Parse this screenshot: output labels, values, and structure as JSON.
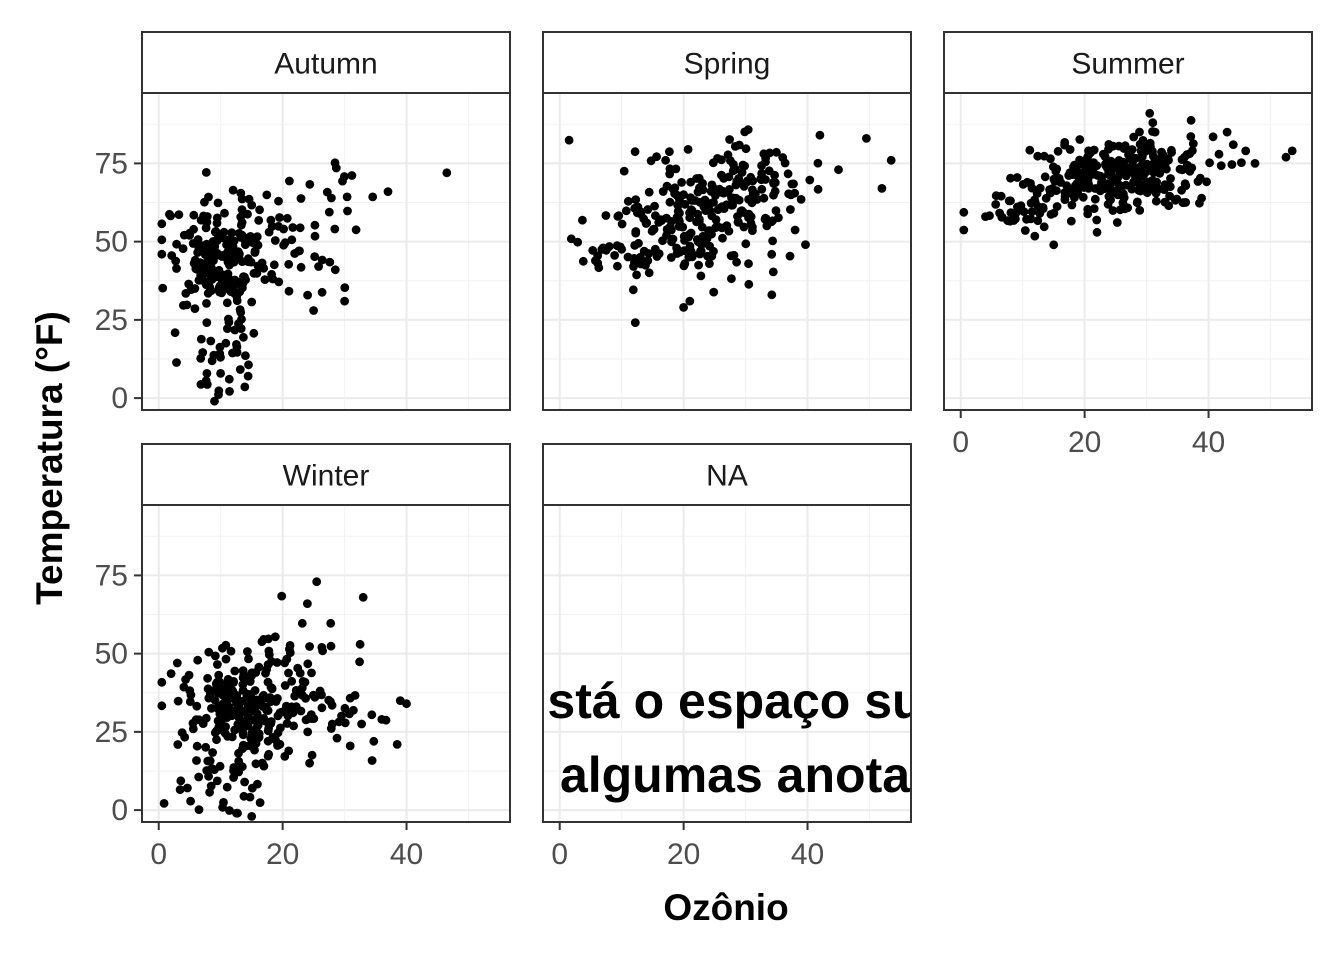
{
  "chart_data": {
    "type": "scatter",
    "xlabel": "Ozônio",
    "ylabel": "Temperatura (°F)",
    "xlim": [
      -2.7,
      56.7
    ],
    "ylim": [
      -3.8,
      97.5
    ],
    "x_ticks": [
      0,
      20,
      40
    ],
    "y_ticks": [
      0,
      25,
      50,
      75
    ],
    "grid": true,
    "panels": [
      {
        "name": "Autumn",
        "clusters": [
          {
            "n": 190,
            "cx": 10,
            "cy": 45,
            "sx": 4.2,
            "sy": 9
          },
          {
            "n": 35,
            "cx": 11,
            "cy": 14,
            "sx": 3.5,
            "sy": 7
          },
          {
            "n": 45,
            "cx": 20,
            "cy": 50,
            "sx": 5,
            "sy": 10
          },
          {
            "n": 12,
            "cx": 29,
            "cy": 66,
            "sx": 3,
            "sy": 5
          }
        ],
        "points": [
          [
            46.5,
            72
          ],
          [
            37,
            66
          ],
          [
            30,
            31
          ],
          [
            28.5,
            41
          ],
          [
            0.5,
            46
          ],
          [
            9,
            -1
          ],
          [
            25,
            28
          ]
        ]
      },
      {
        "name": "Spring",
        "clusters": [
          {
            "n": 220,
            "cx": 21,
            "cy": 56,
            "sx": 7,
            "sy": 10
          },
          {
            "n": 70,
            "cx": 31,
            "cy": 70,
            "sx": 6,
            "sy": 8
          },
          {
            "n": 20,
            "cx": 11,
            "cy": 46,
            "sx": 3,
            "sy": 5
          }
        ],
        "points": [
          [
            53.5,
            76
          ],
          [
            49.5,
            83
          ],
          [
            52,
            67
          ],
          [
            42,
            84
          ],
          [
            20,
            29
          ],
          [
            21,
            31
          ],
          [
            7,
            48
          ],
          [
            45,
            73
          ]
        ]
      },
      {
        "name": "Summer",
        "clusters": [
          {
            "n": 230,
            "cx": 24,
            "cy": 70,
            "sx": 6.5,
            "sy": 6
          },
          {
            "n": 60,
            "cx": 33,
            "cy": 76,
            "sx": 5,
            "sy": 5
          },
          {
            "n": 40,
            "cx": 10,
            "cy": 60,
            "sx": 4,
            "sy": 4
          }
        ],
        "points": [
          [
            53.5,
            79
          ],
          [
            52.5,
            77
          ],
          [
            47.5,
            75
          ],
          [
            46,
            79
          ],
          [
            44,
            81
          ],
          [
            30.5,
            91
          ],
          [
            31,
            88
          ],
          [
            15,
            49
          ],
          [
            22,
            53
          ],
          [
            4,
            58
          ],
          [
            43,
            85
          ]
        ]
      },
      {
        "name": "Winter",
        "clusters": [
          {
            "n": 210,
            "cx": 13,
            "cy": 33,
            "sx": 5,
            "sy": 9
          },
          {
            "n": 60,
            "cx": 26,
            "cy": 34,
            "sx": 5,
            "sy": 8
          },
          {
            "n": 30,
            "cx": 11,
            "cy": 8,
            "sx": 3.5,
            "sy": 6
          },
          {
            "n": 20,
            "cx": 22,
            "cy": 52,
            "sx": 4,
            "sy": 7
          }
        ],
        "points": [
          [
            40,
            34
          ],
          [
            39,
            35
          ],
          [
            38.5,
            21
          ],
          [
            33,
            68
          ],
          [
            32.5,
            53
          ],
          [
            25.5,
            73
          ],
          [
            24,
            66
          ],
          [
            15,
            -2
          ],
          [
            3,
            47
          ],
          [
            36,
            29
          ]
        ]
      },
      {
        "name": "NA",
        "clusters": [],
        "points": []
      }
    ],
    "annotation_lines": [
      "stá o espaço su",
      "algumas anota"
    ]
  }
}
